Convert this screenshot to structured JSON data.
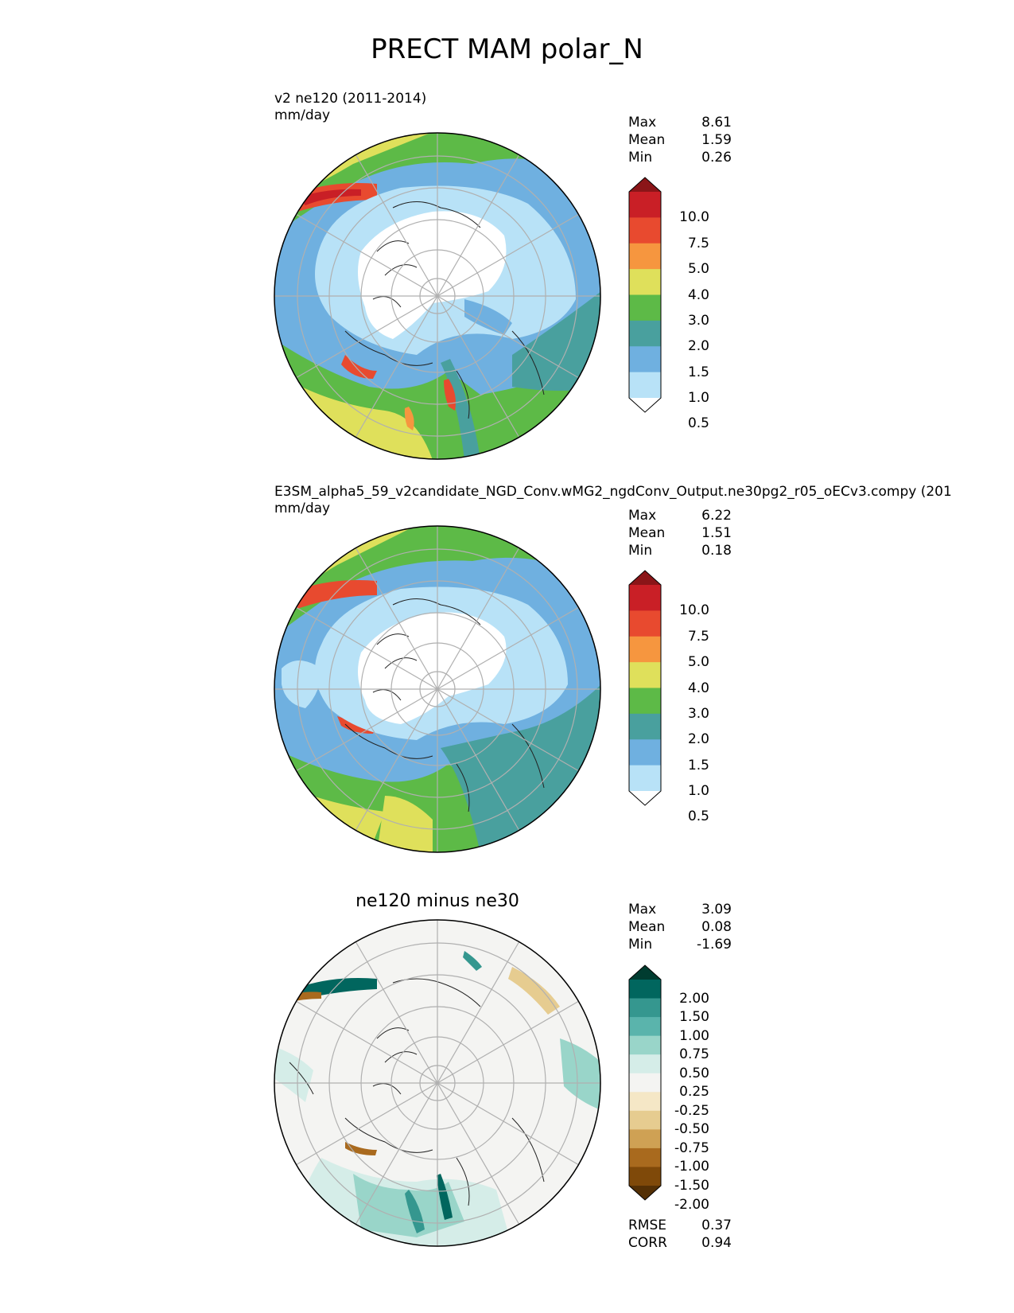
{
  "page": {
    "title": "PRECT MAM polar_N"
  },
  "panels": [
    {
      "id": "test",
      "title_lines": [
        "v2 ne120 (2011-2014)",
        "mm/day"
      ],
      "stats": [
        {
          "label": "Max",
          "value": "8.61"
        },
        {
          "label": "Mean",
          "value": "1.59"
        },
        {
          "label": "Min",
          "value": "0.26"
        }
      ],
      "colorbar": {
        "labels": [
          "10.0",
          "7.5",
          "5.0",
          "4.0",
          "3.0",
          "2.0",
          "1.5",
          "1.0",
          "0.5"
        ],
        "colors_top_to_bottom": [
          "#8b1518",
          "#c91f26",
          "#e84a2f",
          "#f6963f",
          "#dfe05b",
          "#5dba47",
          "#49a09e",
          "#6fb0e0",
          "#b8e2f7",
          "#ffffff"
        ]
      }
    },
    {
      "id": "reference",
      "title_lines": [
        "E3SM_alpha5_59_v2candidate_NGD_Conv.wMG2_ngdConv_Output.ne30pg2_r05_oECv3.compy (201",
        "mm/day"
      ],
      "stats": [
        {
          "label": "Max",
          "value": "6.22"
        },
        {
          "label": "Mean",
          "value": "1.51"
        },
        {
          "label": "Min",
          "value": "0.18"
        }
      ],
      "colorbar": {
        "labels": [
          "10.0",
          "7.5",
          "5.0",
          "4.0",
          "3.0",
          "2.0",
          "1.5",
          "1.0",
          "0.5"
        ],
        "colors_top_to_bottom": [
          "#8b1518",
          "#c91f26",
          "#e84a2f",
          "#f6963f",
          "#dfe05b",
          "#5dba47",
          "#49a09e",
          "#6fb0e0",
          "#b8e2f7",
          "#ffffff"
        ]
      }
    },
    {
      "id": "difference",
      "title_lines": [
        "ne120 minus ne30"
      ],
      "stats": [
        {
          "label": "Max",
          "value": "3.09"
        },
        {
          "label": "Mean",
          "value": "0.08"
        },
        {
          "label": "Min",
          "value": "-1.69"
        }
      ],
      "extra_stats": [
        {
          "label": "RMSE",
          "value": "0.37"
        },
        {
          "label": "CORR",
          "value": "0.94"
        }
      ],
      "colorbar": {
        "labels": [
          "2.00",
          "1.50",
          "1.00",
          "0.75",
          "0.50",
          "0.25",
          "-0.25",
          "-0.50",
          "-0.75",
          "-1.00",
          "-1.50",
          "-2.00"
        ],
        "colors_top_to_bottom": [
          "#003c30",
          "#01665e",
          "#35978f",
          "#5ab4ac",
          "#99d5c9",
          "#d5ede8",
          "#f4f4f2",
          "#f5e7c6",
          "#e6cc90",
          "#cfa154",
          "#a96a1e",
          "#7f4909",
          "#543005"
        ]
      }
    }
  ]
}
